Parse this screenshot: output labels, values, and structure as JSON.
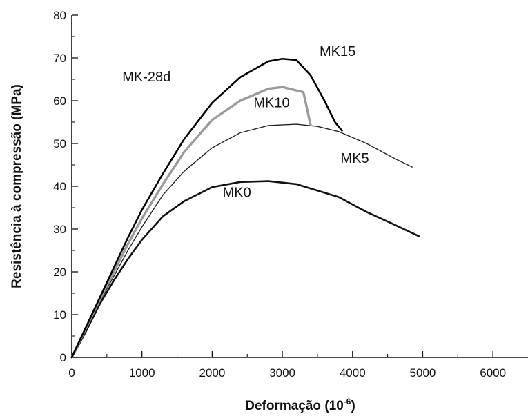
{
  "chart_data": {
    "type": "line",
    "title": "",
    "annotation": "MK-28d",
    "xlabel": "Deformação (10",
    "xlabel_exponent": "-6",
    "xlabel_close": ")",
    "ylabel": "Resistência à compressão (MPa)",
    "xlim": [
      0,
      6500
    ],
    "ylim": [
      0,
      80
    ],
    "xticks": [
      0,
      1000,
      2000,
      3000,
      4000,
      5000,
      6000
    ],
    "yticks": [
      0,
      10,
      20,
      30,
      40,
      50,
      60,
      70,
      80
    ],
    "xtick_labels": [
      "0",
      "1000",
      "2000",
      "3000",
      "4000",
      "5000",
      "6000"
    ],
    "ytick_labels": [
      "0",
      "10",
      "20",
      "30",
      "40",
      "50",
      "60",
      "70",
      "80"
    ],
    "grid": false,
    "series": [
      {
        "name": "MK0",
        "color": "#111111",
        "x": [
          0,
          200,
          400,
          600,
          800,
          1000,
          1300,
          1600,
          2000,
          2400,
          2800,
          3200,
          3500,
          3800,
          4200,
          4600,
          4950
        ],
        "y": [
          0,
          6,
          12.5,
          18,
          23,
          27.5,
          33,
          36.5,
          39.8,
          41,
          41.2,
          40.5,
          39,
          37.5,
          34,
          31,
          28.3
        ]
      },
      {
        "name": "MK5",
        "color": "#222222",
        "x": [
          0,
          200,
          400,
          600,
          800,
          1000,
          1300,
          1600,
          2000,
          2400,
          2800,
          3200,
          3500,
          3800,
          4200,
          4600,
          4850
        ],
        "y": [
          0,
          6.5,
          13,
          19,
          25,
          30.5,
          38,
          43.5,
          49,
          52.5,
          54.2,
          54.5,
          54,
          52.8,
          50,
          46.5,
          44.5
        ]
      },
      {
        "name": "MK10",
        "color": "#9a9a9a",
        "x": [
          0,
          200,
          400,
          600,
          800,
          1000,
          1300,
          1600,
          2000,
          2400,
          2800,
          3000,
          3300,
          3400
        ],
        "y": [
          0,
          6.8,
          13.5,
          20,
          26.5,
          32.5,
          40.5,
          48,
          55.5,
          60,
          62.8,
          63.2,
          62,
          54.5
        ]
      },
      {
        "name": "MK15",
        "color": "#000000",
        "x": [
          0,
          200,
          400,
          600,
          800,
          1000,
          1300,
          1600,
          2000,
          2400,
          2800,
          3000,
          3200,
          3400,
          3600,
          3750,
          3850
        ],
        "y": [
          0,
          7,
          14,
          21,
          28,
          34.5,
          43,
          51,
          59.5,
          65.5,
          69.2,
          69.8,
          69.5,
          66,
          60,
          55,
          53
        ]
      }
    ],
    "series_label_positions": [
      {
        "name": "MK0",
        "x": 2150,
        "y": 37.5
      },
      {
        "name": "MK5",
        "x": 3830,
        "y": 45.5
      },
      {
        "name": "MK10",
        "x": 2590,
        "y": 58.5
      },
      {
        "name": "MK15",
        "x": 3530,
        "y": 70.5
      }
    ],
    "annotation_position": {
      "x": 720,
      "y": 64.5
    }
  }
}
